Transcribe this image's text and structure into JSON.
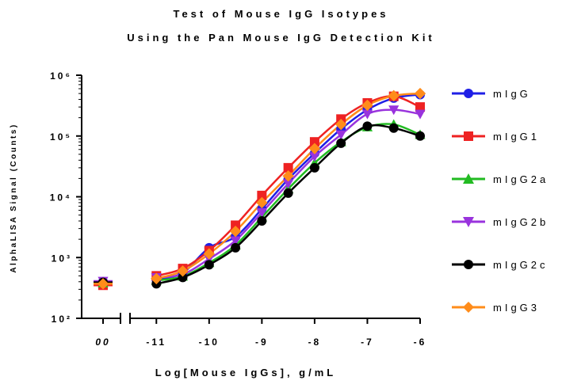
{
  "chart_data": {
    "type": "scatter",
    "title": "Test of Mouse IgG Isotypes",
    "subtitle": "Using the Pan Mouse IgG Detection Kit",
    "xlabel": "Log[Mouse IgGs], g/mL",
    "ylabel": "AlphaLISA Signal (Counts)",
    "y_scale": "log",
    "ylim": [
      100,
      1000000
    ],
    "xlim": [
      -11.5,
      -6
    ],
    "x_break": true,
    "x_tick_labels": [
      "00",
      "-11",
      "-10",
      "-9",
      "-8",
      "-7",
      "-6"
    ],
    "y_tick_labels": [
      "10²",
      "10³",
      "10⁴",
      "10⁵",
      "10⁶"
    ],
    "legend_position": "right",
    "grid": false,
    "x": [
      "00",
      -11,
      -10.5,
      -10,
      -9.5,
      -9,
      -8.5,
      -8,
      -7.5,
      -7,
      -6.5,
      -6
    ],
    "series": [
      {
        "name": "mIgG",
        "color": "#1f1fe6",
        "marker": "circle",
        "values": [
          400,
          430,
          560,
          1450,
          2200,
          6300,
          19500,
          52000,
          130000,
          270000,
          420000,
          480000
        ]
      },
      {
        "name": "mIgG1",
        "color": "#ee2222",
        "marker": "square",
        "values": [
          350,
          500,
          660,
          1300,
          3400,
          10500,
          30000,
          80000,
          190000,
          350000,
          450000,
          300000
        ]
      },
      {
        "name": "mIgG2a",
        "color": "#22bb22",
        "marker": "triangle-up",
        "values": [
          380,
          420,
          490,
          820,
          1600,
          4600,
          13500,
          36000,
          80000,
          140000,
          155000,
          105000
        ]
      },
      {
        "name": "mIgG2b",
        "color": "#9933dd",
        "marker": "triangle-down",
        "values": [
          410,
          470,
          530,
          950,
          1900,
          5500,
          16500,
          46000,
          105000,
          230000,
          270000,
          230000
        ]
      },
      {
        "name": "mIgG2c",
        "color": "#000000",
        "marker": "circle",
        "values": [
          390,
          370,
          470,
          760,
          1450,
          4000,
          11500,
          30000,
          76000,
          145000,
          135000,
          100000
        ]
      },
      {
        "name": "mIgG3",
        "color": "#ff8c1a",
        "marker": "diamond",
        "values": [
          370,
          450,
          600,
          1150,
          2700,
          8000,
          22000,
          62000,
          155000,
          320000,
          460000,
          500000
        ]
      }
    ]
  }
}
